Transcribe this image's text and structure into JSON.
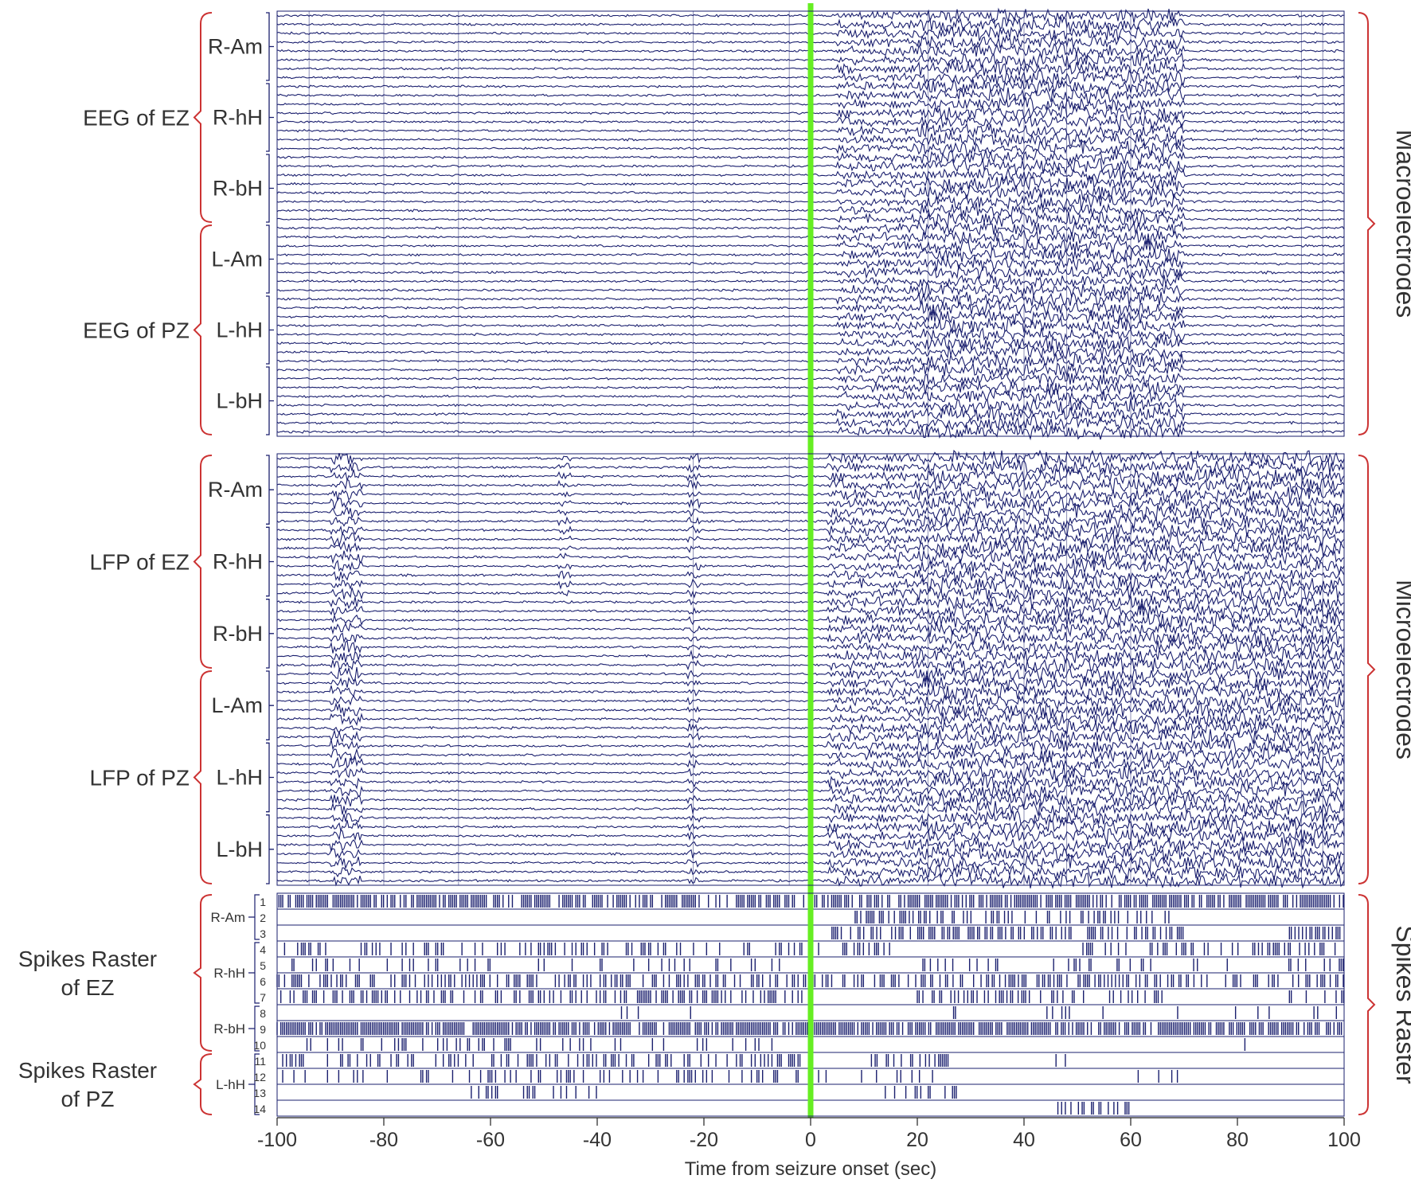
{
  "chart_data": {
    "type": "raster",
    "xlabel": "Time from seizure onset (sec)",
    "xlim": [
      -100,
      100
    ],
    "xticks": [
      -100,
      -80,
      -60,
      -40,
      -20,
      0,
      20,
      40,
      60,
      80,
      100
    ],
    "onset_time": 0,
    "colors": {
      "trace": "#1a1f6e",
      "onset_line": "#66ee22",
      "brace": "#cc3333",
      "text": "#333333"
    },
    "panels": [
      {
        "id": "macro",
        "side_label": "Macroelectrodes",
        "groups": [
          {
            "label": "EEG of EZ",
            "regions": [
              "R-Am",
              "R-hH",
              "R-bH"
            ]
          },
          {
            "label": "EEG of PZ",
            "regions": [
              "L-Am",
              "L-hH",
              "L-bH"
            ]
          }
        ],
        "channels_per_region": 8
      },
      {
        "id": "micro",
        "side_label": "Microelectrodes",
        "groups": [
          {
            "label": "LFP of EZ",
            "regions": [
              "R-Am",
              "R-hH",
              "R-bH"
            ]
          },
          {
            "label": "LFP of PZ",
            "regions": [
              "L-Am",
              "L-hH",
              "L-bH"
            ]
          }
        ],
        "channels_per_region": 8
      },
      {
        "id": "spikes",
        "side_label": "Spikes Raster",
        "groups": [
          {
            "label_lines": [
              "Spikes Raster",
              "of EZ"
            ],
            "regions": [
              {
                "name": "R-Am",
                "units": [
                  1,
                  2,
                  3
                ]
              },
              {
                "name": "R-hH",
                "units": [
                  4,
                  5,
                  6,
                  7
                ]
              },
              {
                "name": "R-bH",
                "units": [
                  8,
                  9,
                  10
                ]
              }
            ]
          },
          {
            "label_lines": [
              "Spikes Raster",
              "of PZ"
            ],
            "regions": [
              {
                "name": "L-hH",
                "units": [
                  11,
                  12,
                  13,
                  14
                ]
              }
            ]
          }
        ],
        "units": [
          {
            "id": 1,
            "active": [
              [
                -100,
                100
              ]
            ],
            "density": 0.7
          },
          {
            "id": 2,
            "active": [
              [
                -48,
                -46
              ],
              [
                8,
                68
              ]
            ],
            "density": 0.35
          },
          {
            "id": 3,
            "active": [
              [
                4,
                70
              ],
              [
                88,
                100
              ]
            ],
            "density": 0.45
          },
          {
            "id": 4,
            "active": [
              [
                -100,
                16
              ],
              [
                50,
                100
              ]
            ],
            "density": 0.3
          },
          {
            "id": 5,
            "active": [
              [
                -100,
                0
              ],
              [
                20,
                100
              ]
            ],
            "density": 0.15
          },
          {
            "id": 6,
            "active": [
              [
                -100,
                100
              ]
            ],
            "density": 0.4
          },
          {
            "id": 7,
            "active": [
              [
                -100,
                0
              ],
              [
                20,
                66
              ],
              [
                88,
                100
              ]
            ],
            "density": 0.35
          },
          {
            "id": 8,
            "active": [
              [
                -40,
                -20
              ],
              [
                24,
                100
              ]
            ],
            "density": 0.08
          },
          {
            "id": 9,
            "active": [
              [
                -100,
                100
              ]
            ],
            "density": 0.75
          },
          {
            "id": 10,
            "active": [
              [
                -100,
                -5
              ],
              [
                80,
                82
              ]
            ],
            "density": 0.2
          },
          {
            "id": 11,
            "active": [
              [
                -100,
                -2
              ],
              [
                10,
                26
              ],
              [
                46,
                48
              ]
            ],
            "density": 0.4
          },
          {
            "id": 12,
            "active": [
              [
                -100,
                28
              ],
              [
                60,
                70
              ]
            ],
            "density": 0.2
          },
          {
            "id": 13,
            "active": [
              [
                -65,
                -40
              ],
              [
                14,
                28
              ]
            ],
            "density": 0.25
          },
          {
            "id": 14,
            "active": [
              [
                46,
                60
              ]
            ],
            "density": 0.4
          }
        ]
      }
    ]
  }
}
